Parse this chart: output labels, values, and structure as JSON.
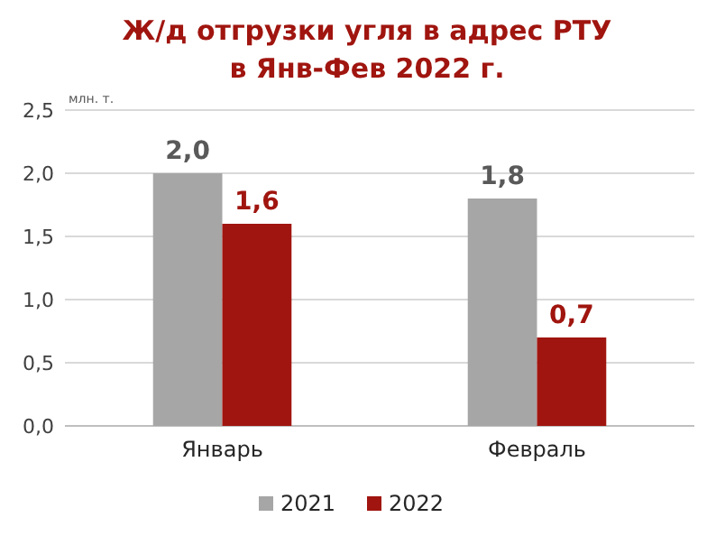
{
  "chart_data": {
    "type": "bar",
    "title": "Ж/д отгрузки угля в адрес РТУ\nв Янв-Фев 2022 г.",
    "ylabel": "млн. т.",
    "categories": [
      "Январь",
      "Февраль"
    ],
    "series": [
      {
        "name": "2021",
        "color": "#a6a6a6",
        "values": [
          2.0,
          1.8
        ],
        "value_labels": [
          "2,0",
          "1,8"
        ]
      },
      {
        "name": "2022",
        "color": "#a0150f",
        "values": [
          1.6,
          0.7
        ],
        "value_labels": [
          "1,6",
          "0,7"
        ]
      }
    ],
    "ylim": [
      0,
      2.5
    ],
    "yticks": [
      {
        "value": 0,
        "label": "0,0"
      },
      {
        "value": 0.5,
        "label": "0,5"
      },
      {
        "value": 1,
        "label": "1,0"
      },
      {
        "value": 1.5,
        "label": "1,5"
      },
      {
        "value": 2,
        "label": "2,0"
      },
      {
        "value": 2.5,
        "label": "2,5"
      }
    ],
    "grid": "y",
    "legend": "bottom"
  }
}
